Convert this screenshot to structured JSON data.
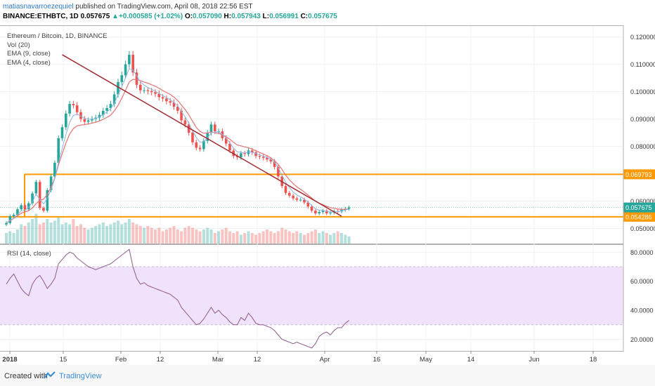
{
  "header": {
    "user": "matiasnavarroezequiel",
    "published": "published on TradingView.com, April 08, 2018 22:56 EST",
    "symbol": "BINANCE:ETHBTC, 1D",
    "last": "0.057675",
    "change": "+0.000585 (+1.02%)",
    "open_label": "O:",
    "open": "0.057090",
    "high_label": "H:",
    "high": "0.057943",
    "low_label": "L:",
    "low": "0.056991",
    "close_label": "C:",
    "close": "0.057675"
  },
  "legend": {
    "title": "Ethereum / Bitcoin, 1D, BINANCE",
    "vol": "Vol (20)",
    "ema9": "EMA (9, close)",
    "ema4": "EMA (4, close)"
  },
  "rsi_legend": "RSI (14, close)",
  "footer": {
    "created": "Created with",
    "brand": "TradingView"
  },
  "colors": {
    "up": "#26a69a",
    "down": "#ef5350",
    "ema9": "#e57373",
    "ema4": "#8ab4e8",
    "hline": "#ff9900",
    "trend": "#a0282e",
    "rsi": "#8e5a8e",
    "rsi_band": "#efe2fa"
  },
  "chart_data": [
    {
      "type": "candlestick",
      "title": "Ethereum / Bitcoin, 1D, BINANCE",
      "x_tick_labels": [
        "2018",
        "15",
        "Feb",
        "12",
        "Mar",
        "12",
        "Apr",
        "16",
        "May",
        "14",
        "Jun",
        "18"
      ],
      "y_tick_labels": [
        "0.120000",
        "0.110000",
        "0.100000",
        "0.090000",
        "0.080000",
        "0.060000",
        "0.050000"
      ],
      "ylim": [
        0.0445,
        0.124
      ],
      "horizontal_levels": [
        {
          "label": "0.069793",
          "value": 0.069793
        },
        {
          "label": "0.054286",
          "value": 0.054286
        }
      ],
      "last_price_label": "0.057675",
      "last_price": 0.057675,
      "trendline": [
        [
          15,
          0.1135
        ],
        [
          90,
          0.0545
        ]
      ],
      "close": [
        0.052,
        0.0545,
        0.055,
        0.057,
        0.0585,
        0.057,
        0.0592,
        0.0628,
        0.067,
        0.0575,
        0.0565,
        0.064,
        0.069,
        0.074,
        0.083,
        0.087,
        0.092,
        0.0955,
        0.095,
        0.0925,
        0.09,
        0.089,
        0.0895,
        0.09,
        0.0905,
        0.0915,
        0.093,
        0.094,
        0.0955,
        0.099,
        0.1035,
        0.106,
        0.11,
        0.1135,
        0.107,
        0.1025,
        0.1005,
        0.1005,
        0.1002,
        0.0998,
        0.0992,
        0.098,
        0.0975,
        0.0965,
        0.096,
        0.0945,
        0.093,
        0.0895,
        0.088,
        0.085,
        0.0815,
        0.0795,
        0.079,
        0.082,
        0.085,
        0.088,
        0.0855,
        0.0855,
        0.083,
        0.081,
        0.0785,
        0.0765,
        0.076,
        0.0775,
        0.0772,
        0.0785,
        0.0778,
        0.0765,
        0.0762,
        0.0758,
        0.0752,
        0.0745,
        0.0725,
        0.069,
        0.0655,
        0.063,
        0.062,
        0.061,
        0.0605,
        0.0605,
        0.0595,
        0.058,
        0.0565,
        0.0555,
        0.056,
        0.0565,
        0.0555,
        0.0558,
        0.0563,
        0.0562,
        0.0568,
        0.0572,
        0.0577
      ],
      "ema9": [
        0.052,
        0.0528,
        0.0537,
        0.0546,
        0.0556,
        0.0561,
        0.0565,
        0.0575,
        0.0591,
        0.0602,
        0.0607,
        0.0625,
        0.065,
        0.0683,
        0.0732,
        0.0773,
        0.0812,
        0.0845,
        0.0865,
        0.0875,
        0.0878,
        0.0879,
        0.0882,
        0.0885,
        0.0888,
        0.0893,
        0.0899,
        0.0906,
        0.0914,
        0.093,
        0.095,
        0.0976,
        0.1005,
        0.1035,
        0.1045,
        0.1044,
        0.104,
        0.1035,
        0.1031,
        0.1025,
        0.102,
        0.1012,
        0.1004,
        0.0997,
        0.099,
        0.098,
        0.0968,
        0.0951,
        0.0935,
        0.0915,
        0.0892,
        0.0869,
        0.0855,
        0.0848,
        0.0849,
        0.0853,
        0.085,
        0.0847,
        0.0842,
        0.0835,
        0.0826,
        0.0815,
        0.0805,
        0.0802,
        0.0798,
        0.0795,
        0.079,
        0.0784,
        0.0778,
        0.0772,
        0.0766,
        0.0758,
        0.0748,
        0.0734,
        0.0716,
        0.0695,
        0.0678,
        0.0664,
        0.0652,
        0.0643,
        0.0633,
        0.0622,
        0.0611,
        0.06,
        0.0592,
        0.0587,
        0.0581,
        0.0576,
        0.0574,
        0.0571,
        0.057,
        0.057,
        0.0571
      ],
      "volume": [
        0.3,
        0.35,
        0.3,
        0.4,
        0.55,
        0.5,
        0.6,
        0.7,
        0.85,
        0.55,
        0.6,
        0.7,
        0.6,
        0.65,
        0.75,
        0.55,
        0.6,
        0.55,
        0.7,
        0.5,
        0.55,
        0.45,
        0.4,
        0.45,
        0.5,
        0.55,
        0.6,
        0.5,
        0.55,
        0.6,
        0.65,
        0.55,
        0.6,
        0.7,
        0.6,
        0.55,
        0.5,
        0.45,
        0.5,
        0.45,
        0.4,
        0.45,
        0.35,
        0.4,
        0.45,
        0.5,
        0.4,
        0.35,
        0.45,
        0.5,
        0.45,
        0.4,
        0.35,
        0.4,
        0.45,
        0.4,
        0.3,
        0.35,
        0.4,
        0.45,
        0.35,
        0.3,
        0.35,
        0.25,
        0.3,
        0.35,
        0.3,
        0.25,
        0.3,
        0.35,
        0.4,
        0.35,
        0.3,
        0.35,
        0.45,
        0.4,
        0.35,
        0.3,
        0.35,
        0.3,
        0.25,
        0.3,
        0.35,
        0.4,
        0.3,
        0.35,
        0.3,
        0.25,
        0.3,
        0.35,
        0.3,
        0.25,
        0.2
      ]
    },
    {
      "type": "line",
      "title": "RSI (14, close)",
      "y_tick_labels": [
        "80.0000",
        "60.0000",
        "40.0000",
        "20.0000"
      ],
      "ylim": [
        12,
        85
      ],
      "band": [
        30,
        70
      ],
      "values": [
        58,
        62,
        65,
        60,
        55,
        52,
        50,
        58,
        62,
        64,
        60,
        55,
        58,
        62,
        72,
        75,
        78,
        80,
        79,
        76,
        74,
        72,
        70,
        69,
        68,
        69,
        70,
        71,
        72,
        74,
        76,
        78,
        80,
        82,
        70,
        62,
        58,
        59,
        57,
        56,
        55,
        54,
        53,
        52,
        51,
        49,
        47,
        42,
        39,
        36,
        33,
        30,
        31,
        34,
        38,
        42,
        38,
        40,
        37,
        35,
        32,
        30,
        30,
        35,
        33,
        38,
        35,
        31,
        30,
        30,
        29,
        28,
        26,
        23,
        20,
        19,
        18,
        17,
        18,
        17,
        16,
        15,
        14,
        17,
        22,
        24,
        25,
        23,
        26,
        28,
        28,
        31,
        33
      ]
    }
  ]
}
